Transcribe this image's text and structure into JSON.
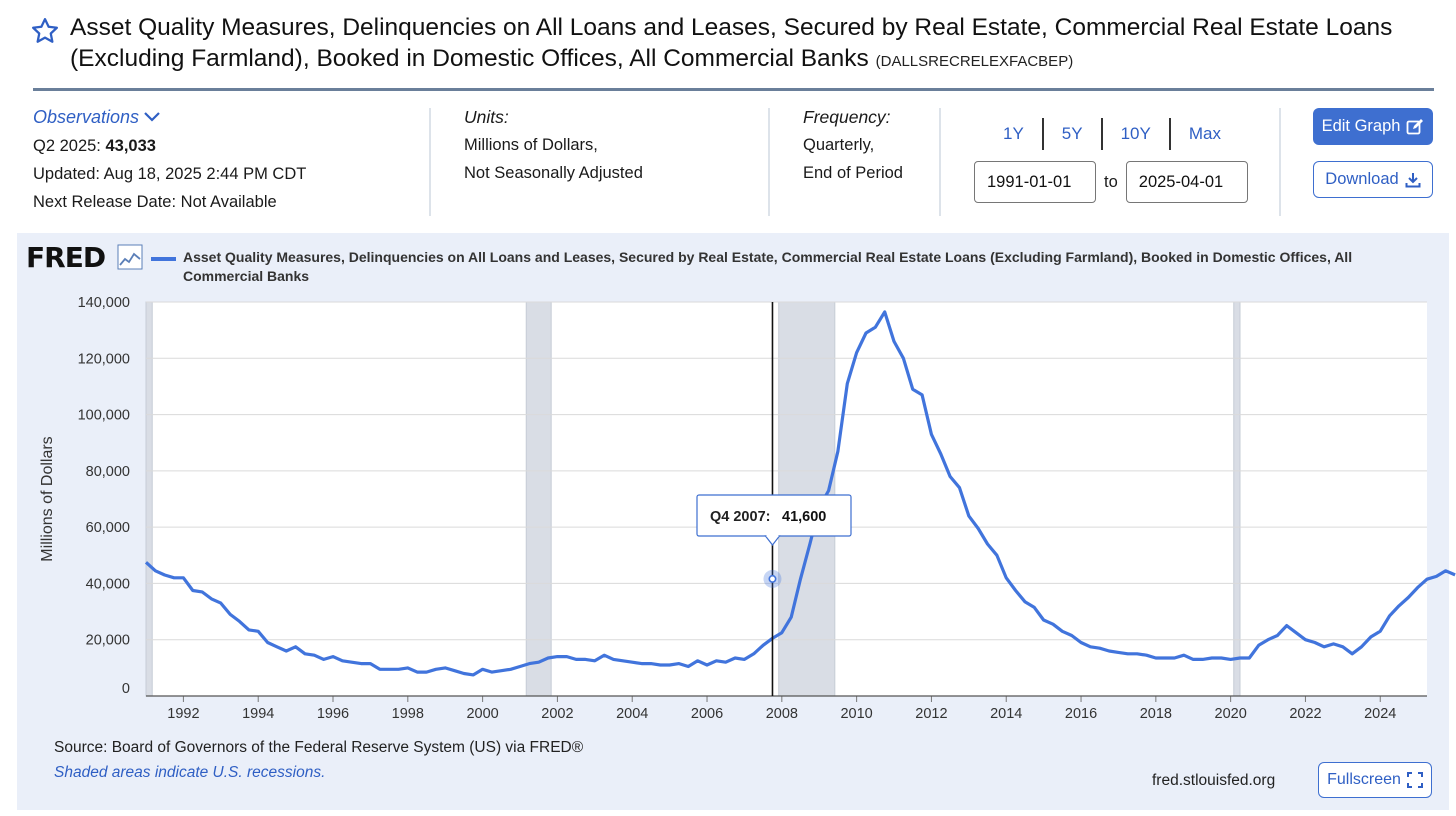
{
  "header": {
    "title": "Asset Quality Measures, Delinquencies on All Loans and Leases, Secured by Real Estate, Commercial Real Estate Loans (Excluding Farmland), Booked in Domestic Offices, All Commercial Banks",
    "series_code": "(DALLSRECRELEXFACBEP)"
  },
  "observations": {
    "toggle_label": "Observations",
    "latest_period": "Q2 2025:",
    "latest_value": "43,033",
    "updated": "Updated: Aug 18, 2025 2:44 PM CDT",
    "next_release": "Next Release Date: Not Available"
  },
  "units": {
    "label": "Units:",
    "line1": "Millions of Dollars,",
    "line2": "Not Seasonally Adjusted"
  },
  "frequency": {
    "label": "Frequency:",
    "line1": "Quarterly,",
    "line2": "End of Period"
  },
  "range": {
    "buttons": [
      "1Y",
      "5Y",
      "10Y",
      "Max"
    ],
    "start": "1991-01-01",
    "to_label": "to",
    "end": "2025-04-01"
  },
  "actions": {
    "edit_graph": "Edit Graph",
    "download": "Download",
    "fullscreen": "Fullscreen"
  },
  "footer": {
    "source": "Source: Board of Governors of the Federal Reserve System (US) via FRED®",
    "note": "Shaded areas indicate U.S. recessions.",
    "site": "fred.stlouisfed.org"
  },
  "colors": {
    "accent": "#3e6fd0",
    "line": "#4174dc",
    "panel": "#eaeff9",
    "recession": "#d9dde5"
  },
  "chart_data": {
    "type": "line",
    "brand": "FRED",
    "series_name": "Asset Quality Measures, Delinquencies on All Loans and Leases, Secured by Real Estate, Commercial Real Estate Loans (Excluding Farmland), Booked in Domestic Offices, All Commercial Banks",
    "ylabel": "Millions of Dollars",
    "ylim": [
      0,
      140000
    ],
    "xlim": [
      1991.0,
      2025.25
    ],
    "yticks": [
      0,
      20000,
      40000,
      60000,
      80000,
      100000,
      120000,
      140000
    ],
    "ytick_labels": [
      "0",
      "20,000",
      "40,000",
      "60,000",
      "80,000",
      "100,000",
      "120,000",
      "140,000"
    ],
    "xticks": [
      "1992",
      "1994",
      "1996",
      "1998",
      "2000",
      "2002",
      "2004",
      "2006",
      "2008",
      "2010",
      "2012",
      "2014",
      "2016",
      "2018",
      "2020",
      "2022",
      "2024"
    ],
    "grid": true,
    "recessions": [
      [
        "1991-01-01",
        "1991-03-01"
      ],
      [
        "2001-03-01",
        "2001-11-01"
      ],
      [
        "2007-12-01",
        "2009-06-01"
      ],
      [
        "2020-02-01",
        "2020-04-01"
      ]
    ],
    "tooltip": {
      "period": "Q4 2007:",
      "value": "41,600",
      "date": "2007-10-01"
    },
    "start": "1991-01-01",
    "frequency": "quarterly",
    "values": [
      47500,
      44500,
      43000,
      42000,
      42000,
      37500,
      37000,
      34500,
      33000,
      29000,
      26500,
      23500,
      23000,
      19000,
      17500,
      16000,
      17500,
      15000,
      14500,
      13000,
      14000,
      12500,
      12000,
      11500,
      11500,
      9500,
      9500,
      9500,
      10000,
      8500,
      8500,
      9500,
      10000,
      9000,
      8000,
      7500,
      9500,
      8500,
      9000,
      9500,
      10500,
      11500,
      12000,
      13500,
      14000,
      14000,
      13000,
      13000,
      12500,
      14500,
      13000,
      12500,
      12000,
      11500,
      11500,
      11000,
      11000,
      11500,
      10500,
      12500,
      11000,
      12500,
      12000,
      13500,
      13000,
      15000,
      18000,
      20500,
      22500,
      28000,
      41600,
      54000,
      67000,
      73000,
      87000,
      111000,
      122000,
      129000,
      131000,
      136500,
      126000,
      120000,
      109000,
      107000,
      93000,
      86000,
      78000,
      74000,
      64000,
      59500,
      54000,
      50000,
      42000,
      37500,
      33500,
      31500,
      27000,
      25500,
      23000,
      21500,
      19000,
      17500,
      17000,
      16000,
      15500,
      15000,
      15000,
      14500,
      13500,
      13500,
      13500,
      14500,
      13000,
      13000,
      13500,
      13500,
      13000,
      13500,
      13500,
      18000,
      20000,
      21500,
      25000,
      22500,
      20000,
      19000,
      17500,
      18500,
      17500,
      15000,
      17500,
      21000,
      23000,
      28500,
      32000,
      35000,
      38500,
      41500,
      42500,
      44500,
      43033
    ]
  }
}
